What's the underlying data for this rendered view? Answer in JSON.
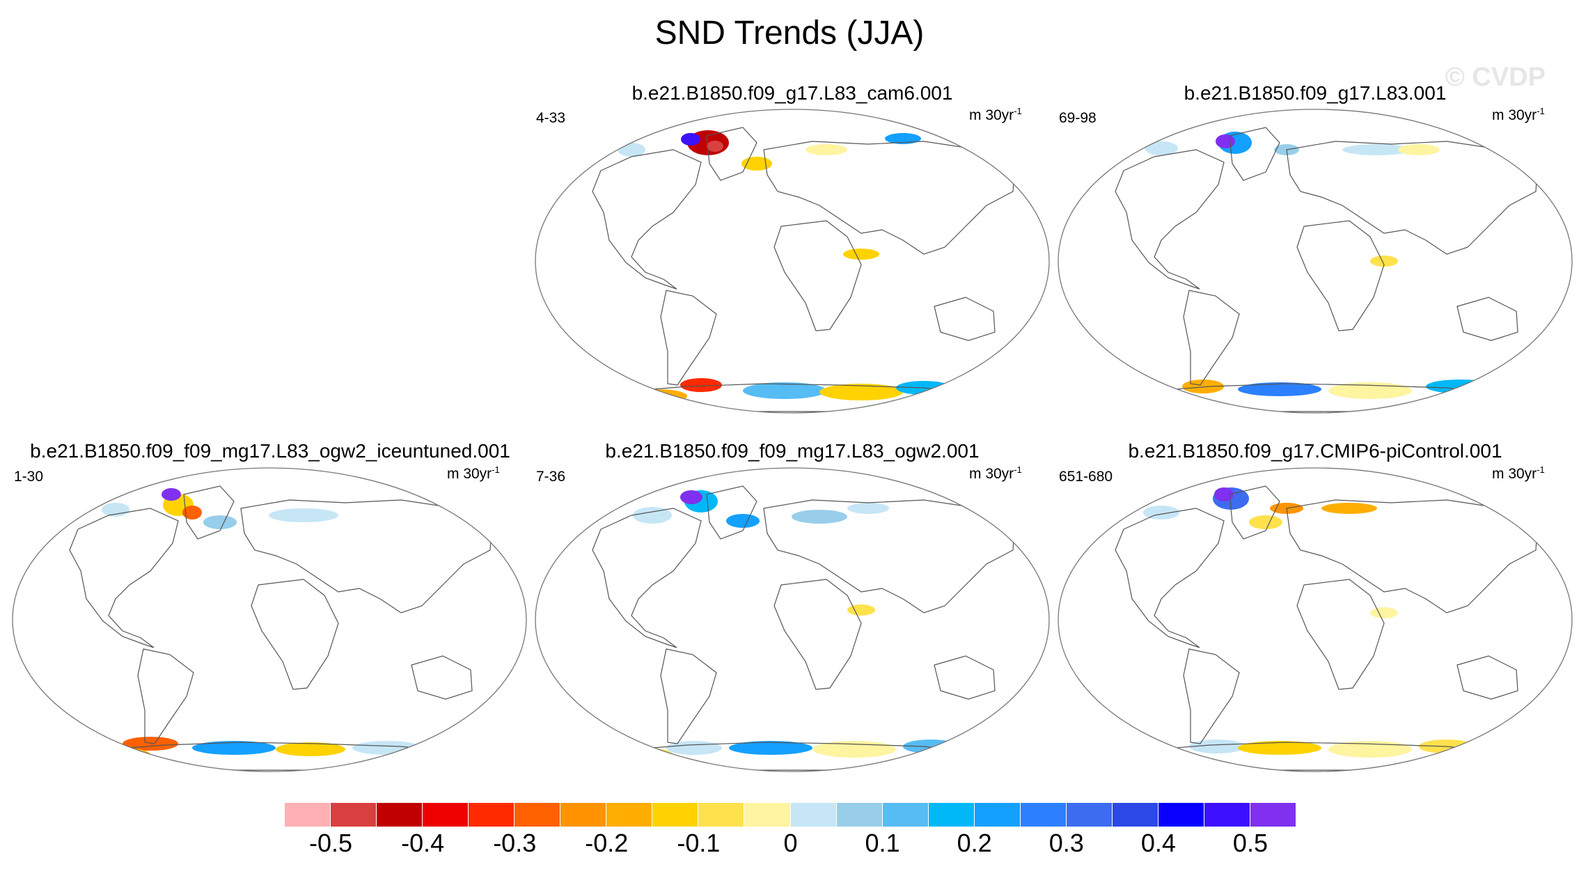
{
  "figure": {
    "title": "SND Trends (JJA)",
    "watermark": "© CVDP"
  },
  "panels": [
    {
      "title": "b.e21.B1850.f09_g17.L83_cam6.001",
      "years": "4-33",
      "units": "m 30yr",
      "units_exp": "-1"
    },
    {
      "title": "b.e21.B1850.f09_g17.L83.001",
      "years": "69-98",
      "units": "m 30yr",
      "units_exp": "-1"
    },
    {
      "title": "b.e21.B1850.f09_f09_mg17.L83_ogw2_iceuntuned.001",
      "years": "1-30",
      "units": "m 30yr",
      "units_exp": "-1"
    },
    {
      "title": "b.e21.B1850.f09_f09_mg17.L83_ogw2.001",
      "years": "7-36",
      "units": "m 30yr",
      "units_exp": "-1"
    },
    {
      "title": "b.e21.B1850.f09_g17.CMIP6-piControl.001",
      "years": "651-680",
      "units": "m 30yr",
      "units_exp": "-1"
    }
  ],
  "colorbar": {
    "colors": [
      "#ffb0b4",
      "#d94040",
      "#c00000",
      "#ee0000",
      "#ff2a00",
      "#ff6000",
      "#ff9400",
      "#ffae00",
      "#ffd200",
      "#ffe14c",
      "#fff4a0",
      "#c6e6f6",
      "#98ceea",
      "#56bcf4",
      "#00b8f8",
      "#14a0ff",
      "#2c80ff",
      "#3c6cf0",
      "#2c48e6",
      "#0800ff",
      "#3c10ff",
      "#8030ee"
    ],
    "labels": [
      "-0.5",
      "-0.4",
      "-0.3",
      "-0.2",
      "-0.1",
      "0",
      "0.1",
      "0.2",
      "0.3",
      "0.4",
      "0.5"
    ]
  }
}
